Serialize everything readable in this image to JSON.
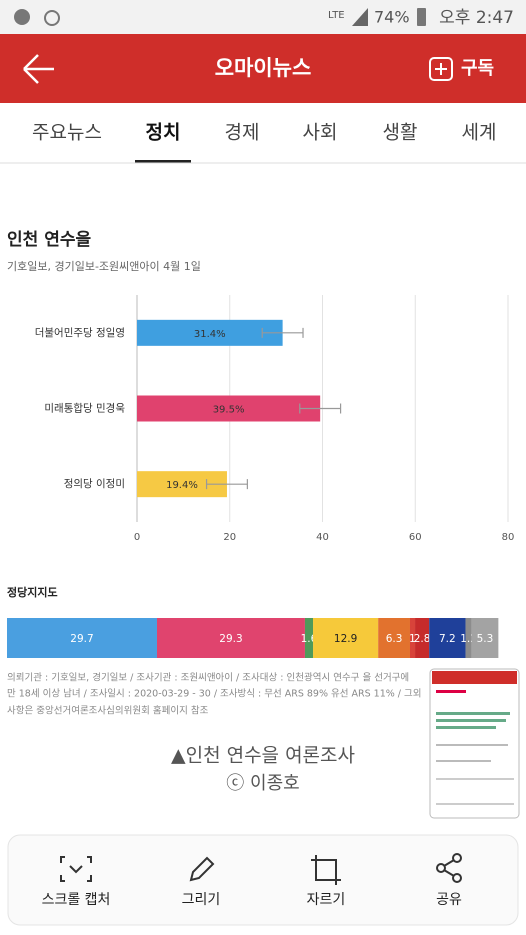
{
  "status_bar": {
    "network": "LTE",
    "battery": "74%",
    "time": "오후 2:47"
  },
  "header": {
    "title": "오마이뉴스",
    "subscribe": "구독"
  },
  "tabs": [
    "주요뉴스",
    "정치",
    "경제",
    "사회",
    "생활",
    "세계"
  ],
  "article": {
    "chart": {
      "type": "bar",
      "title": "인천 연수을",
      "subtitle": "기호일보, 경기일보-조원씨앤아이 4월 1일",
      "categories": [
        "더불어민주당 정일영",
        "미래통합당 민경욱",
        "정의당 이정미"
      ],
      "values": [
        31.4,
        39.5,
        19.4
      ],
      "value_labels": [
        "31.4%",
        "39.5%",
        "19.4%"
      ],
      "errors": [
        4.4,
        4.4,
        4.4
      ],
      "colors": [
        "#3f9fe0",
        "#e0426e",
        "#f6c944"
      ],
      "xlim": [
        0,
        80
      ],
      "xticks": [
        0,
        20,
        40,
        60,
        80
      ],
      "grid": true
    },
    "party_support": {
      "type": "stacked_bar",
      "title": "정당지지도",
      "values": [
        29.7,
        29.3,
        1.6,
        12.9,
        6.3,
        1,
        2.8,
        7.2,
        1.2,
        5.3
      ],
      "colors": [
        "#4a9fe0",
        "#e0446e",
        "#4f9a5a",
        "#f6c93a",
        "#e2722e",
        "#d8433a",
        "#c62b2b",
        "#1f409a",
        "#8c8c8c",
        "#a3a3a3"
      ],
      "xlim": [
        0,
        100
      ]
    },
    "notes": [
      "의뢰기관 : 기호일보, 경기일보 / 조사기관 : 조원씨앤아이 / 조사대상 : 인천광역시 연수구 을 선거구에",
      "만 18세 이상 남녀 / 조사일시 : 2020-03-29 - 30 / 조사방식 : 무선 ARS 89% 유선 ARS 11% / 그외",
      "사항은 중앙선거여론조사심의위원회 홈페이지 참조"
    ],
    "caption": "▲인천 연수을 여론조사",
    "credit": "ⓒ 이종호"
  },
  "toolbar": [
    "스크롤 캡처",
    "그리기",
    "자르기",
    "공유"
  ]
}
